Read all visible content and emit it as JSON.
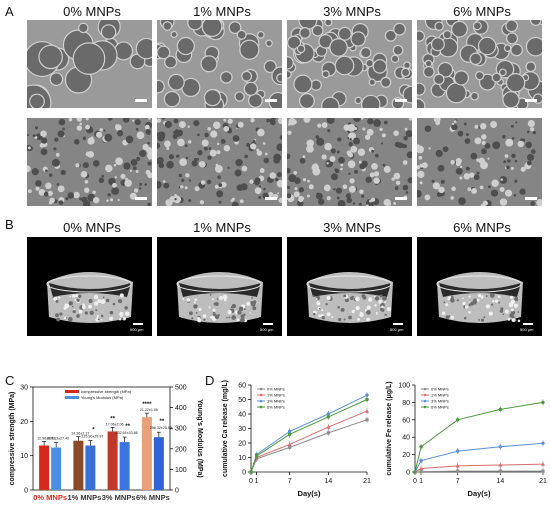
{
  "panels": {
    "A": "A",
    "B": "B",
    "C": "C",
    "D": "D"
  },
  "columns": [
    "0% MNPs",
    "1% MNPs",
    "3% MNPs",
    "6% MNPs"
  ],
  "ct_scale_label": "500 μm",
  "chart_c": {
    "type": "bar",
    "categories": [
      "0% MNPs",
      "1% MNPs",
      "3% MNPs",
      "6% MNPs"
    ],
    "ylabel_left": "compressive strength (MPa)",
    "ylabel_right": "Young's Modulus (MPa)",
    "ylim_left": [
      0,
      30
    ],
    "ylim_right": [
      0,
      500
    ],
    "ticks_left": [
      "0",
      "10",
      "20",
      "30"
    ],
    "ticks_right": [
      "0",
      "100",
      "200",
      "300",
      "400",
      "500"
    ],
    "legend": [
      "compressive strength (MPa)",
      "Young's Modulus (MPa)"
    ],
    "series": [
      {
        "name": "compressive strength (MPa)",
        "values": [
          12.96,
          14.36,
          17.06,
          21.22
        ],
        "colors": [
          "#d7281c",
          "#8a4a2a",
          "#c0392b",
          "#e8a07a"
        ]
      },
      {
        "name": "Young's Modulus (MPa)",
        "values": [
          206.13,
          215.9,
          232.61,
          256.32
        ],
        "colors": [
          "#4a90e2",
          "#3b6fd8",
          "#3d75e0",
          "#2f63d6"
        ]
      }
    ],
    "data_labels_strength": [
      "12.96±0.78",
      "14.36±2.17",
      "17.06±2.06",
      "21.22±1.06"
    ],
    "data_labels_modulus": [
      "206.13±27.40",
      "215.90±29.97",
      "232.61±33.88",
      "256.32±25.53"
    ],
    "sig_strength": [
      "",
      "",
      "**",
      "****"
    ],
    "sig_modulus": [
      "",
      "*",
      "**",
      "**"
    ],
    "category_label_colors": [
      "#d7281c",
      "#333333",
      "#333333",
      "#333333"
    ]
  },
  "chart_d_ca": {
    "type": "line",
    "xlabel": "Day(s)",
    "ylabel": "cumulative Ca release (mg/L)",
    "x": [
      0,
      1,
      7,
      14,
      21
    ],
    "xticks": [
      "0",
      "1",
      "7",
      "14",
      "21"
    ],
    "yticks": [
      "0",
      "10",
      "20",
      "30",
      "40",
      "50",
      "60"
    ],
    "ylim": [
      0,
      60
    ],
    "series": [
      {
        "name": "0% MNPs",
        "values": [
          0,
          9,
          17,
          27,
          36
        ],
        "color": "#8c8c8c"
      },
      {
        "name": "1% MNPs",
        "values": [
          0,
          10,
          19,
          31,
          42
        ],
        "color": "#d96c6c"
      },
      {
        "name": "3% MNPs",
        "values": [
          0,
          12,
          28,
          40,
          53
        ],
        "color": "#5b8fd6"
      },
      {
        "name": "6% MNPs",
        "values": [
          0,
          11,
          26,
          38,
          50
        ],
        "color": "#4a9a3a"
      }
    ]
  },
  "chart_d_fe": {
    "type": "line",
    "xlabel": "Day(s)",
    "ylabel": "cumulative Fe release (μg/L)",
    "x": [
      0,
      1,
      7,
      14,
      21
    ],
    "xticks": [
      "0",
      "1",
      "7",
      "14",
      "21"
    ],
    "yticks": [
      "0",
      "20",
      "40",
      "60",
      "80",
      "100"
    ],
    "ylim": [
      0,
      100
    ],
    "series": [
      {
        "name": "0% MNPs",
        "values": [
          0,
          0.5,
          1,
          1,
          1
        ],
        "color": "#8c8c8c"
      },
      {
        "name": "1% MNPs",
        "values": [
          0,
          4,
          7,
          8,
          9
        ],
        "color": "#d96c6c"
      },
      {
        "name": "3% MNPs",
        "values": [
          0,
          13,
          24,
          29,
          33
        ],
        "color": "#5b8fd6"
      },
      {
        "name": "6% MNPs",
        "values": [
          0,
          29,
          60,
          72,
          80
        ],
        "color": "#4a9a3a"
      }
    ]
  }
}
